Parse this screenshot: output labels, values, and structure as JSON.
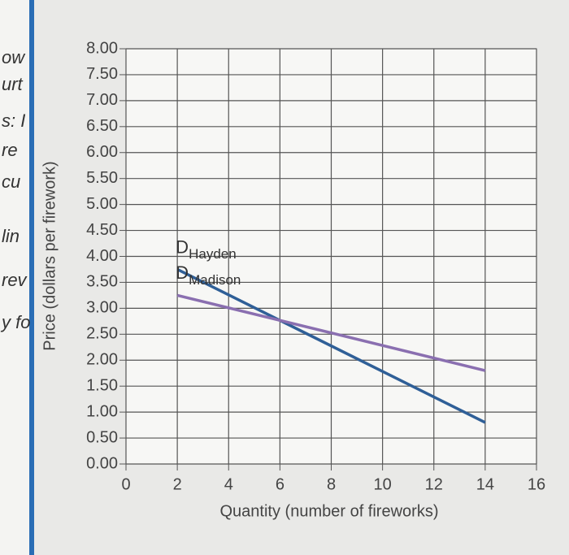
{
  "side_text": [
    "ow",
    "urt",
    "s: I",
    "re",
    "cu",
    "lin",
    "rev",
    "y fo"
  ],
  "chart_data": {
    "type": "line",
    "x_label": "Quantity (number of fireworks)",
    "y_label": "Price (dollars per firework)",
    "label_prefix": "D",
    "x": [
      2,
      14
    ],
    "series": [
      {
        "name": "Hayden",
        "color": "#2f5f97",
        "values": [
          3.75,
          0.8
        ]
      },
      {
        "name": "Madison",
        "color": "#8a6fb0",
        "values": [
          3.25,
          1.8
        ]
      }
    ],
    "xlim": [
      0,
      16
    ],
    "xticks": [
      0,
      2,
      4,
      6,
      8,
      10,
      12,
      14,
      16
    ],
    "ylim": [
      0,
      8
    ],
    "yticks": [
      {
        "value": 0,
        "label": "0.00"
      },
      {
        "value": 0.5,
        "label": "0.50"
      },
      {
        "value": 1,
        "label": "1.00"
      },
      {
        "value": 1.5,
        "label": "1.50"
      },
      {
        "value": 2,
        "label": "2.00"
      },
      {
        "value": 2.5,
        "label": "2.50"
      },
      {
        "value": 3,
        "label": "3.00"
      },
      {
        "value": 3.5,
        "label": "3.50"
      },
      {
        "value": 4,
        "label": "4.00"
      },
      {
        "value": 4.5,
        "label": "4.50"
      },
      {
        "value": 5,
        "label": "5.00"
      },
      {
        "value": 5.5,
        "label": "5.50"
      },
      {
        "value": 6,
        "label": "6.00"
      },
      {
        "value": 6.5,
        "label": "6.50"
      },
      {
        "value": 7,
        "label": "7.00"
      },
      {
        "value": 7.5,
        "label": "7.50"
      },
      {
        "value": 8,
        "label": "8.00"
      }
    ],
    "grid": true
  }
}
